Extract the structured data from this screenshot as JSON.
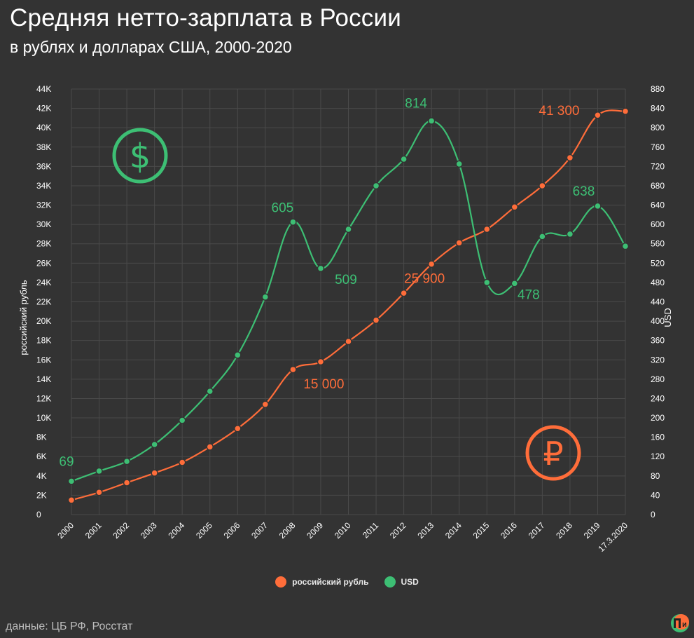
{
  "title": "Средняя нетто-зарплата в России",
  "subtitle": "в рублях и долларах США, 2000-2020",
  "source": "данные: ЦБ РФ, Росстат",
  "colors": {
    "rub": "#ff6d3a",
    "usd": "#3dbf74",
    "background": "#333333",
    "grid": "#4a4a4a"
  },
  "icons": {
    "dollar": "dollar-sign-icon",
    "ruble": "ruble-sign-icon",
    "logo": "publisher-logo-icon"
  },
  "chart_data": {
    "type": "line",
    "categories": [
      "2000",
      "2001",
      "2002",
      "2003",
      "2004",
      "2005",
      "2006",
      "2007",
      "2008",
      "2009",
      "2010",
      "2011",
      "2012",
      "2013",
      "2014",
      "2015",
      "2016",
      "2017",
      "2018",
      "2019",
      "17.3.2020"
    ],
    "left_axis": {
      "label": "российский рубль",
      "range": [
        0,
        44000
      ],
      "ticks": [
        "0",
        "2K",
        "4K",
        "6K",
        "8K",
        "10K",
        "12K",
        "14K",
        "16K",
        "18K",
        "20K",
        "22K",
        "24K",
        "26K",
        "28K",
        "30K",
        "32K",
        "34K",
        "36K",
        "38K",
        "40K",
        "42K",
        "44K"
      ]
    },
    "right_axis": {
      "label": "USD",
      "range": [
        0,
        880
      ],
      "ticks": [
        "0",
        "40",
        "80",
        "120",
        "160",
        "200",
        "240",
        "280",
        "320",
        "360",
        "400",
        "440",
        "480",
        "520",
        "560",
        "600",
        "640",
        "680",
        "720",
        "760",
        "800",
        "840",
        "880"
      ]
    },
    "grid": true,
    "legend_position": "bottom",
    "series": [
      {
        "name": "российский рубль",
        "axis": "left",
        "values": [
          1500,
          2300,
          3300,
          4300,
          5400,
          7000,
          8900,
          11400,
          15000,
          15800,
          17900,
          20100,
          22900,
          25900,
          28100,
          29500,
          31800,
          34000,
          36900,
          41300,
          41700
        ],
        "data_labels": [
          {
            "index": 8,
            "text": "15 000"
          },
          {
            "index": 13,
            "text": "25 900"
          },
          {
            "index": 19,
            "text": "41 300"
          }
        ]
      },
      {
        "name": "USD",
        "axis": "right",
        "values": [
          69,
          90,
          110,
          145,
          195,
          255,
          330,
          450,
          605,
          509,
          590,
          680,
          735,
          814,
          725,
          480,
          478,
          575,
          580,
          638,
          555
        ],
        "data_labels": [
          {
            "index": 0,
            "text": "69"
          },
          {
            "index": 8,
            "text": "605"
          },
          {
            "index": 9,
            "text": "509"
          },
          {
            "index": 13,
            "text": "814"
          },
          {
            "index": 16,
            "text": "478"
          },
          {
            "index": 19,
            "text": "638"
          }
        ]
      }
    ]
  }
}
